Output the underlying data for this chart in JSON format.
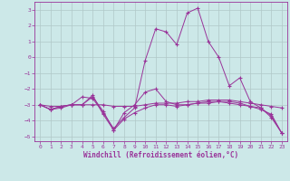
{
  "xlabel": "Windchill (Refroidissement éolien,°C)",
  "xlim": [
    -0.5,
    23.5
  ],
  "ylim": [
    -5.3,
    3.5
  ],
  "xticks": [
    0,
    1,
    2,
    3,
    4,
    5,
    6,
    7,
    8,
    9,
    10,
    11,
    12,
    13,
    14,
    15,
    16,
    17,
    18,
    19,
    20,
    21,
    22,
    23
  ],
  "yticks": [
    -5,
    -4,
    -3,
    -2,
    -1,
    0,
    1,
    2,
    3
  ],
  "bg_color": "#cce8e8",
  "line_color": "#993399",
  "grid_color": "#b0c8c8",
  "series1_x": [
    0,
    1,
    2,
    3,
    4,
    5,
    6,
    7,
    8,
    9,
    10,
    11,
    12,
    13,
    14,
    15,
    16,
    17,
    18,
    19,
    20,
    21,
    22,
    23
  ],
  "series1_y": [
    -3.0,
    -3.3,
    -3.2,
    -3.0,
    -3.0,
    -2.5,
    -3.4,
    -4.6,
    -3.5,
    -3.0,
    -2.2,
    -2.0,
    -2.8,
    -3.0,
    -3.0,
    -2.9,
    -2.9,
    -2.8,
    -2.9,
    -3.0,
    -3.1,
    -3.2,
    -3.7,
    -4.8
  ],
  "series2_x": [
    0,
    1,
    2,
    3,
    4,
    5,
    6,
    7,
    8,
    9,
    10,
    11,
    12,
    13,
    14,
    15,
    16,
    17,
    18,
    19,
    20,
    21,
    22,
    23
  ],
  "series2_y": [
    -3.0,
    -3.1,
    -3.1,
    -3.0,
    -3.0,
    -3.0,
    -3.0,
    -3.1,
    -3.1,
    -3.1,
    -3.0,
    -2.9,
    -2.9,
    -2.9,
    -2.8,
    -2.8,
    -2.7,
    -2.7,
    -2.7,
    -2.8,
    -2.9,
    -3.0,
    -3.1,
    -3.2
  ],
  "series3_x": [
    0,
    1,
    2,
    3,
    4,
    5,
    6,
    7,
    8,
    9,
    10,
    11,
    12,
    13,
    14,
    15,
    16,
    17,
    18,
    19,
    20,
    21,
    22,
    23
  ],
  "series3_y": [
    -3.0,
    -3.3,
    -3.1,
    -3.0,
    -3.0,
    -2.4,
    -3.6,
    -4.6,
    -3.9,
    -3.5,
    -3.2,
    -3.0,
    -3.0,
    -3.1,
    -3.0,
    -2.9,
    -2.8,
    -2.8,
    -2.8,
    -2.9,
    -3.1,
    -3.3,
    -3.6,
    -4.8
  ],
  "series4_x": [
    0,
    1,
    2,
    3,
    4,
    5,
    6,
    7,
    8,
    9,
    10,
    11,
    12,
    13,
    14,
    15,
    16,
    17,
    18,
    19,
    20,
    21,
    22,
    23
  ],
  "series4_y": [
    -3.0,
    -3.3,
    -3.1,
    -3.0,
    -2.5,
    -2.6,
    -3.5,
    -4.5,
    -3.8,
    -3.2,
    -0.2,
    1.8,
    1.6,
    0.8,
    2.8,
    3.1,
    1.0,
    0.0,
    -1.8,
    -1.3,
    -2.8,
    -3.2,
    -3.8,
    -4.8
  ]
}
